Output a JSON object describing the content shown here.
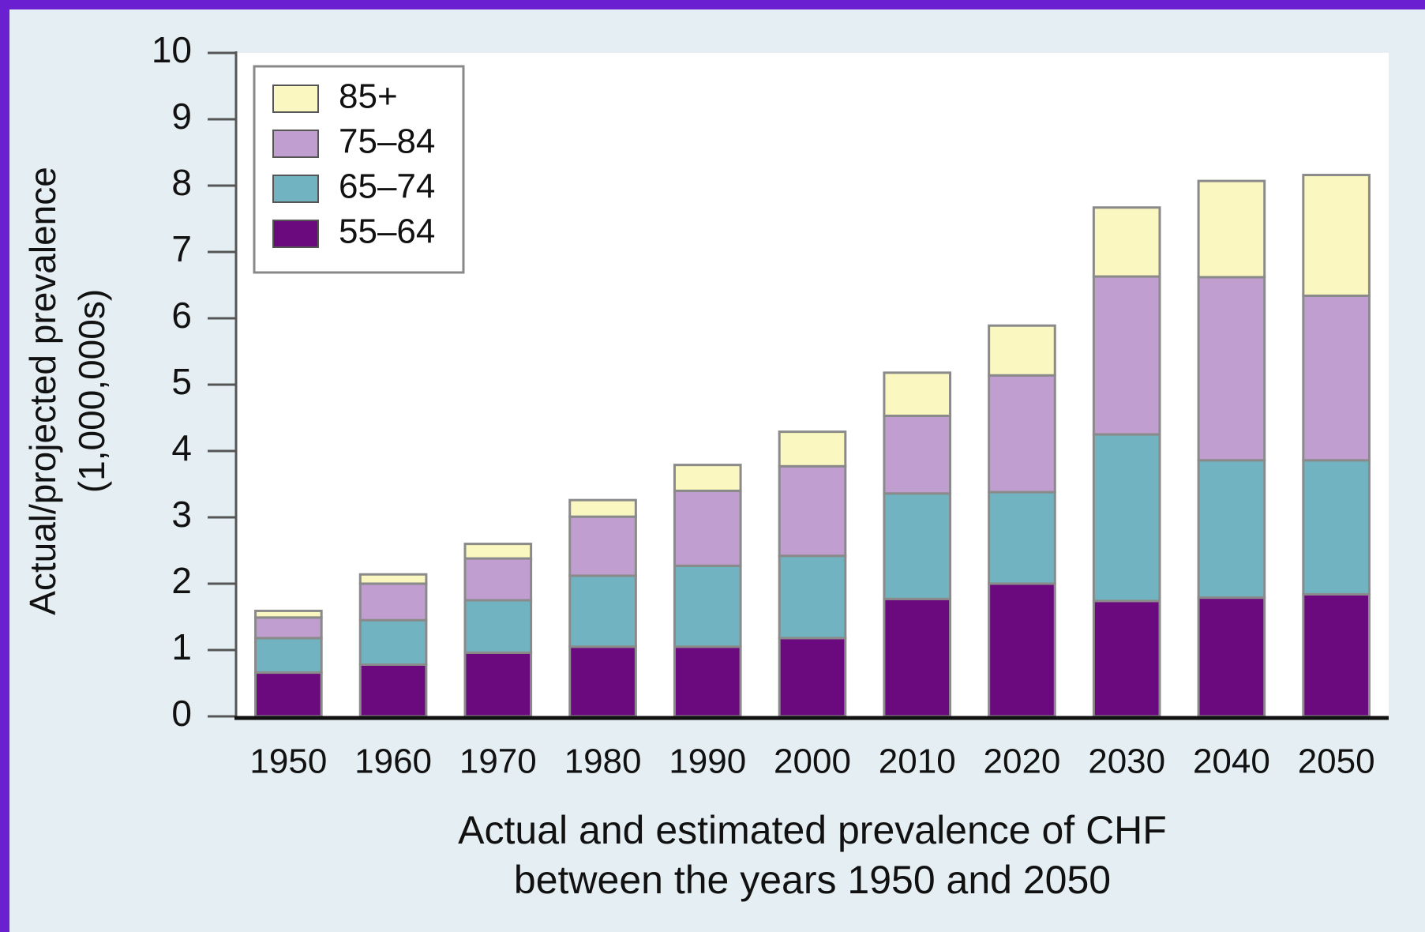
{
  "chart_data": {
    "type": "stacked_bar",
    "y_label": [
      "Actual/projected prevalence",
      "(1,000,000s)"
    ],
    "x_label": [
      "Actual and estimated prevalence of CHF",
      "between the years 1950 and 2050"
    ],
    "categories": [
      "1950",
      "1960",
      "1970",
      "1980",
      "1990",
      "2000",
      "2010",
      "2020",
      "2030",
      "2040",
      "2050"
    ],
    "series": [
      {
        "name": "55–64",
        "color": "#6b0a7e",
        "values": [
          0.66,
          0.78,
          0.96,
          1.05,
          1.05,
          1.18,
          1.77,
          2.0,
          1.74,
          1.79,
          1.84
        ]
      },
      {
        "name": "65–74",
        "color": "#72b3c1",
        "values": [
          0.52,
          0.67,
          0.79,
          1.07,
          1.22,
          1.24,
          1.59,
          1.38,
          2.51,
          2.07,
          2.02
        ]
      },
      {
        "name": "75–84",
        "color": "#c09fd0",
        "values": [
          0.31,
          0.55,
          0.63,
          0.89,
          1.13,
          1.35,
          1.17,
          1.76,
          2.38,
          2.76,
          2.48
        ]
      },
      {
        "name": "85+",
        "color": "#fbf7c0",
        "values": [
          0.1,
          0.14,
          0.22,
          0.25,
          0.39,
          0.52,
          0.65,
          0.75,
          1.04,
          1.45,
          1.82
        ]
      }
    ],
    "ylim": [
      0,
      10
    ],
    "yticks": [
      0,
      1,
      2,
      3,
      4,
      5,
      6,
      7,
      8,
      9,
      10
    ],
    "legend": "upper-left"
  }
}
